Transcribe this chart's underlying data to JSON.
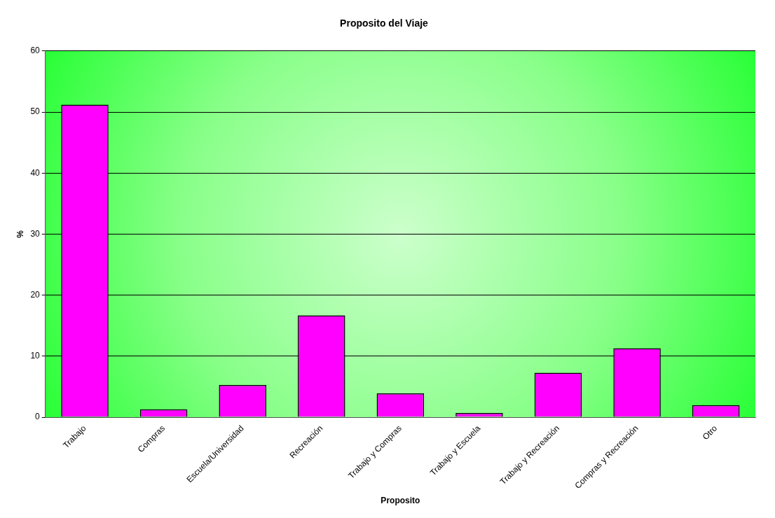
{
  "chart_data": {
    "type": "bar",
    "title": "Proposito del Viaje",
    "xlabel": "Proposito",
    "ylabel": "%",
    "categories": [
      "Trabajo",
      "Compras",
      "Escuela/Universidad",
      "Recreación",
      "Trabajo y Compras",
      "Trabajo y Escuela",
      "Trabajo y Recreación",
      "Compras y Recreación",
      "Otro"
    ],
    "values": [
      51.2,
      1.3,
      5.3,
      16.7,
      3.9,
      0.7,
      7.3,
      11.3,
      2.0
    ],
    "color": "#ff00ff",
    "ylim": [
      0,
      60
    ],
    "yticks": [
      0,
      10,
      20,
      30,
      40,
      50,
      60
    ],
    "grid": "y",
    "legend": false
  }
}
